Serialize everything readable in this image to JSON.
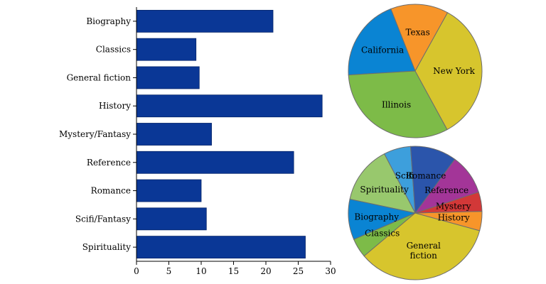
{
  "chart_data": [
    {
      "type": "bar",
      "orientation": "horizontal",
      "categories": [
        "Biography",
        "Classics",
        "General fiction",
        "History",
        "Mystery/Fantasy",
        "Reference",
        "Romance",
        "Scifi/Fantasy",
        "Spirituality"
      ],
      "values": [
        21.1,
        9.2,
        9.7,
        28.7,
        11.6,
        24.3,
        10.0,
        10.8,
        26.1
      ],
      "xlim": [
        0,
        30
      ],
      "xticks": [
        "0",
        "5",
        "10",
        "15",
        "20",
        "25",
        "30"
      ],
      "bar_color": "#0a3796",
      "grid": false
    },
    {
      "type": "pie",
      "labels": [
        "Texas",
        "California",
        "Illinois",
        "New York"
      ],
      "values": [
        14,
        20,
        32,
        34
      ],
      "colors": [
        "#f7952a",
        "#0a84d3",
        "#7dbb48",
        "#d7c52d"
      ]
    },
    {
      "type": "pie",
      "labels": [
        "Scifi",
        "Spirituality",
        "Biography",
        "Classics",
        "General fiction",
        "History",
        "Mystery",
        "Reference",
        "Romance"
      ],
      "display_labels": [
        "Scifi",
        "Spirituality",
        "Biography",
        "Classics",
        "General\nfiction",
        "History",
        "Mystery",
        "Reference",
        "Romance"
      ],
      "values": [
        7,
        15,
        10.5,
        5,
        37,
        5,
        5,
        10.5,
        12
      ],
      "colors": [
        "#3d9fdc",
        "#98c86d",
        "#0a84d3",
        "#7dbb48",
        "#d7c52d",
        "#f7952a",
        "#d23838",
        "#a33598",
        "#2b55ab"
      ]
    }
  ]
}
